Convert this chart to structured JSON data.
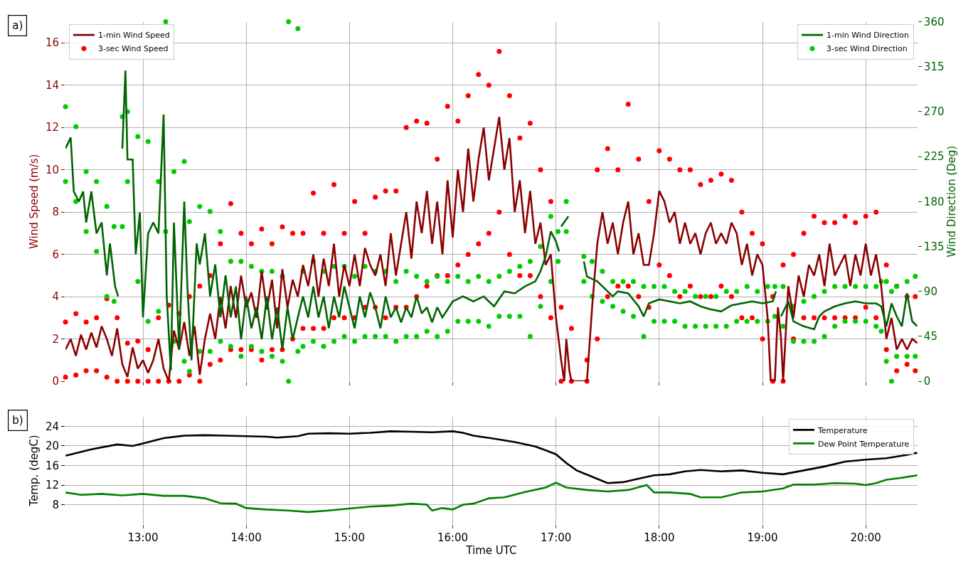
{
  "chart_data": [
    {
      "type": "line",
      "ylabel": "Wind Speed (m/s)",
      "y2label": "Wind Direction (Deg)",
      "annotations": [
        "a)"
      ],
      "xlim": [
        12.25,
        20.5
      ],
      "xticks": [
        {
          "value": 13,
          "label": null
        },
        {
          "value": 14,
          "label": null
        },
        {
          "value": 15,
          "label": null
        },
        {
          "value": 16,
          "label": null
        },
        {
          "value": 17,
          "label": null
        },
        {
          "value": 18,
          "label": null
        },
        {
          "value": 19,
          "label": null
        },
        {
          "value": 20,
          "label": null
        }
      ],
      "tick_labels": "y",
      "ylim": [
        0,
        17
      ],
      "yticks": [
        0,
        2,
        4,
        6,
        8,
        10,
        12,
        14,
        16
      ],
      "y2lim": [
        0,
        360
      ],
      "y2ticks": [
        0,
        45,
        90,
        135,
        180,
        225,
        270,
        315,
        360
      ],
      "grid": true,
      "legend": "top left",
      "series": [
        {
          "name": "1-min Wind Speed",
          "type": "line",
          "color": "#8b0000",
          "x": [
            12.25,
            12.3,
            12.35,
            12.4,
            12.45,
            12.5,
            12.55,
            12.6,
            12.65,
            12.7,
            12.75,
            12.8,
            12.85,
            12.9,
            12.95,
            13.0,
            13.05,
            13.1,
            13.15,
            13.2,
            13.25,
            13.3,
            13.35,
            13.4,
            13.45,
            13.5,
            13.55,
            13.6,
            13.65,
            13.7,
            13.75,
            13.8,
            13.85,
            13.9,
            13.95,
            14.0,
            14.05,
            14.1,
            14.15,
            14.2,
            14.25,
            14.3,
            14.35,
            14.4,
            14.45,
            14.5,
            14.55,
            14.6,
            14.65,
            14.7,
            14.75,
            14.8,
            14.85,
            14.9,
            14.95,
            15.0,
            15.05,
            15.1,
            15.15,
            15.2,
            15.25,
            15.3,
            15.35,
            15.4,
            15.45,
            15.5,
            15.55,
            15.6,
            15.65,
            15.7,
            15.75,
            15.8,
            15.85,
            15.9,
            15.95,
            16.0,
            16.05,
            16.1,
            16.15,
            16.2,
            16.25,
            16.3,
            16.35,
            16.4,
            16.45,
            16.5,
            16.55,
            16.6,
            16.65,
            16.7,
            16.75,
            16.8,
            16.85,
            16.9,
            16.95,
            17.0,
            17.05,
            17.08,
            17.1,
            17.13,
            17.15,
            17.3,
            17.35,
            17.4,
            17.45,
            17.5,
            17.55,
            17.6,
            17.65,
            17.7,
            17.75,
            17.8,
            17.85,
            17.9,
            17.95,
            18.0,
            18.05,
            18.1,
            18.15,
            18.2,
            18.25,
            18.3,
            18.35,
            18.4,
            18.45,
            18.5,
            18.55,
            18.6,
            18.65,
            18.7,
            18.75,
            18.8,
            18.85,
            18.9,
            18.95,
            19.0,
            19.05,
            19.08,
            19.12,
            19.15,
            19.18,
            19.2,
            19.25,
            19.3,
            19.35,
            19.4,
            19.45,
            19.5,
            19.55,
            19.6,
            19.65,
            19.7,
            19.75,
            19.8,
            19.85,
            19.9,
            19.95,
            20.0,
            20.05,
            20.1,
            20.15,
            20.2,
            20.25,
            20.3,
            20.35,
            20.4,
            20.45,
            20.5
          ],
          "values": [
            1.5,
            2.0,
            1.2,
            2.2,
            1.5,
            2.3,
            1.6,
            2.6,
            2.0,
            1.2,
            2.5,
            0.8,
            0.2,
            1.6,
            0.6,
            1.0,
            0.4,
            1.0,
            2.0,
            0.6,
            0.0,
            2.4,
            1.5,
            2.8,
            1.2,
            2.6,
            0.3,
            2.0,
            3.2,
            2.0,
            4.0,
            2.5,
            4.5,
            3.0,
            5.0,
            3.5,
            4.2,
            3.0,
            5.2,
            3.4,
            4.8,
            2.5,
            5.3,
            3.5,
            4.8,
            4.0,
            5.5,
            4.5,
            6.0,
            4.0,
            5.8,
            4.5,
            6.5,
            4.0,
            5.5,
            4.5,
            6.0,
            4.5,
            6.3,
            5.5,
            5.0,
            6.0,
            4.5,
            7.0,
            5.0,
            6.5,
            8.0,
            5.8,
            8.5,
            7.0,
            9.0,
            6.5,
            8.5,
            6.0,
            9.5,
            6.8,
            10.0,
            8.0,
            11.0,
            8.5,
            10.5,
            12.0,
            9.5,
            11.0,
            12.5,
            10.0,
            11.5,
            8.0,
            9.5,
            7.0,
            9.0,
            6.5,
            7.5,
            5.5,
            6.0,
            3.0,
            1.0,
            0.0,
            2.0,
            0.5,
            0.0,
            0.0,
            3.5,
            6.5,
            8.0,
            6.5,
            7.5,
            6.0,
            7.5,
            8.5,
            6.0,
            7.0,
            5.5,
            5.5,
            7.0,
            9.0,
            8.5,
            7.5,
            8.0,
            6.5,
            7.5,
            6.5,
            7.0,
            6.0,
            7.0,
            7.5,
            6.5,
            7.0,
            6.5,
            7.5,
            7.0,
            5.5,
            6.5,
            5.0,
            6.0,
            5.5,
            3.0,
            0.0,
            0.0,
            3.5,
            2.0,
            0.0,
            4.5,
            3.0,
            5.0,
            4.0,
            5.5,
            5.0,
            6.0,
            4.5,
            6.5,
            5.0,
            5.5,
            6.0,
            4.5,
            6.0,
            5.0,
            6.5,
            5.0,
            6.0,
            4.5,
            2.0,
            3.0,
            1.5,
            2.0,
            1.5,
            2.0,
            1.8
          ]
        },
        {
          "name": "3-sec Wind Speed",
          "type": "scatter",
          "marker": "circle",
          "color": "#ff0000",
          "x": [
            12.25,
            12.25,
            12.35,
            12.35,
            12.45,
            12.45,
            12.55,
            12.55,
            12.65,
            12.65,
            12.75,
            12.75,
            12.85,
            12.85,
            12.95,
            12.95,
            13.05,
            13.05,
            13.15,
            13.15,
            13.25,
            13.25,
            13.35,
            13.35,
            13.45,
            13.45,
            13.55,
            13.55,
            13.65,
            13.65,
            13.75,
            13.75,
            13.85,
            13.85,
            13.95,
            13.95,
            14.05,
            14.05,
            14.15,
            14.15,
            14.25,
            14.25,
            14.35,
            14.35,
            14.45,
            14.45,
            14.55,
            14.55,
            14.65,
            14.65,
            14.75,
            14.75,
            14.85,
            14.85,
            14.95,
            14.95,
            15.05,
            15.05,
            15.15,
            15.15,
            15.25,
            15.25,
            15.35,
            15.35,
            15.45,
            15.45,
            15.55,
            15.55,
            15.65,
            15.65,
            15.75,
            15.75,
            15.85,
            15.85,
            15.95,
            15.95,
            16.05,
            16.05,
            16.15,
            16.15,
            16.25,
            16.25,
            16.35,
            16.35,
            16.45,
            16.45,
            16.55,
            16.55,
            16.65,
            16.65,
            16.75,
            16.75,
            16.85,
            16.85,
            16.95,
            16.95,
            17.05,
            17.05,
            17.15,
            17.15,
            17.3,
            17.3,
            17.4,
            17.4,
            17.5,
            17.5,
            17.6,
            17.6,
            17.7,
            17.7,
            17.8,
            17.8,
            17.9,
            17.9,
            18.0,
            18.0,
            18.1,
            18.1,
            18.2,
            18.2,
            18.3,
            18.3,
            18.4,
            18.4,
            18.5,
            18.5,
            18.6,
            18.6,
            18.7,
            18.7,
            18.8,
            18.8,
            18.9,
            18.9,
            19.0,
            19.0,
            19.1,
            19.1,
            19.2,
            19.2,
            19.3,
            19.3,
            19.4,
            19.4,
            19.5,
            19.5,
            19.6,
            19.6,
            19.7,
            19.7,
            19.8,
            19.8,
            19.9,
            19.9,
            20.0,
            20.0,
            20.1,
            20.1,
            20.2,
            20.2,
            20.3,
            20.3,
            20.4,
            20.4,
            20.48,
            20.48
          ],
          "values": [
            2.8,
            0.2,
            3.2,
            0.3,
            2.8,
            0.5,
            3.0,
            0.5,
            3.9,
            0.2,
            3.0,
            0,
            1.8,
            0,
            1.9,
            0,
            1.5,
            0,
            3.0,
            0,
            3.6,
            0,
            3.2,
            0,
            4.0,
            0.3,
            4.5,
            0,
            5.0,
            0.8,
            6.5,
            1.0,
            8.4,
            1.5,
            7.0,
            1.5,
            6.5,
            1.5,
            7.2,
            1.0,
            6.5,
            1.5,
            7.3,
            1.5,
            7.0,
            2.0,
            7.0,
            2.5,
            8.9,
            2.5,
            7.0,
            2.5,
            9.3,
            3.0,
            7.0,
            3.0,
            8.5,
            3.0,
            7.0,
            3.5,
            8.7,
            3.5,
            9.0,
            3.0,
            9.0,
            3.5,
            12.0,
            3.5,
            12.3,
            4.0,
            12.2,
            4.5,
            10.5,
            5.0,
            13.0,
            5.0,
            12.3,
            5.5,
            13.5,
            6.0,
            14.5,
            6.5,
            14.0,
            7.0,
            15.6,
            8.0,
            13.5,
            6.0,
            11.5,
            5.0,
            12.2,
            5.0,
            10.0,
            4.0,
            8.5,
            3.0,
            3.5,
            0,
            2.5,
            0,
            1.0,
            0,
            10.0,
            2.0,
            11.0,
            4.0,
            10.0,
            4.5,
            13.1,
            4.5,
            10.5,
            4.0,
            8.5,
            3.5,
            10.9,
            5.5,
            10.5,
            5.0,
            10.0,
            4.0,
            10.0,
            4.5,
            9.3,
            4.0,
            9.5,
            4.0,
            9.8,
            4.5,
            9.5,
            4.0,
            8.0,
            3.0,
            7.0,
            3.0,
            6.5,
            2.0,
            4.0,
            0,
            5.5,
            0,
            6.0,
            2.0,
            7.0,
            3.0,
            7.8,
            3.0,
            7.5,
            3.0,
            7.5,
            3.0,
            7.8,
            3.0,
            7.5,
            3.0,
            7.8,
            3.5,
            8.0,
            3.0,
            5.5,
            1.5,
            4.5,
            0.5,
            4.0,
            0.8,
            4.0,
            0.5
          ]
        },
        {
          "name": "1-min Wind Direction",
          "type": "line",
          "axis": "y2",
          "color": "#006400",
          "x": [
            12.25,
            12.3,
            12.33,
            12.38,
            12.42,
            12.45,
            12.5,
            12.55,
            12.6,
            12.65,
            12.68,
            12.73,
            12.76,
            12.78,
            12.8,
            12.83,
            12.85,
            12.9,
            12.93,
            12.97,
            13.0,
            13.05,
            13.1,
            13.15,
            13.2,
            13.23,
            13.27,
            13.3,
            13.35,
            13.4,
            13.43,
            13.47,
            13.52,
            13.55,
            13.6,
            13.65,
            13.7,
            13.75,
            13.8,
            13.85,
            13.9,
            13.95,
            14.0,
            14.05,
            14.1,
            14.15,
            14.2,
            14.25,
            14.3,
            14.35,
            14.4,
            14.45,
            14.5,
            14.55,
            14.6,
            14.65,
            14.7,
            14.75,
            14.8,
            14.85,
            14.9,
            14.95,
            15.0,
            15.05,
            15.1,
            15.15,
            15.2,
            15.25,
            15.3,
            15.35,
            15.4,
            15.45,
            15.5,
            15.55,
            15.6,
            15.65,
            15.7,
            15.75,
            15.8,
            15.85,
            15.9,
            16.0,
            16.1,
            16.2,
            16.3,
            16.4,
            16.5,
            16.6,
            16.7,
            16.8,
            16.85,
            16.9,
            16.95,
            17.0,
            17.03,
            17.04,
            17.05,
            17.12,
            17.2,
            17.27,
            17.3,
            17.4,
            17.5,
            17.55,
            17.6,
            17.7,
            17.8,
            17.85,
            17.9,
            18.0,
            18.1,
            18.2,
            18.3,
            18.4,
            18.5,
            18.6,
            18.7,
            18.8,
            18.9,
            19.0,
            19.1,
            19.13,
            19.15,
            19.18,
            19.25,
            19.3,
            19.4,
            19.5,
            19.55,
            19.6,
            19.7,
            19.8,
            19.9,
            20.0,
            20.1,
            20.15,
            20.2,
            20.25,
            20.3,
            20.35,
            20.4,
            20.45,
            20.5
          ],
          "values": [
            233,
            244,
            190,
            180,
            190,
            159,
            190,
            148,
            159,
            106,
            138,
            95,
            85,
            null,
            233,
            311,
            222,
            222,
            127,
            169,
            64,
            148,
            159,
            148,
            267,
            85,
            11,
            159,
            32,
            180,
            95,
            21,
            138,
            117,
            148,
            85,
            117,
            64,
            106,
            64,
            95,
            42,
            85,
            53,
            74,
            42,
            85,
            42,
            74,
            32,
            74,
            42,
            64,
            85,
            64,
            95,
            64,
            85,
            53,
            85,
            64,
            95,
            74,
            53,
            85,
            64,
            89,
            74,
            53,
            85,
            64,
            74,
            59,
            74,
            64,
            85,
            68,
            74,
            59,
            74,
            64,
            80,
            85,
            80,
            85,
            75,
            90,
            88,
            95,
            100,
            110,
            125,
            150,
            140,
            130,
            null,
            155,
            165,
            null,
            120,
            105,
            100,
            90,
            85,
            90,
            88,
            75,
            65,
            78,
            82,
            80,
            78,
            80,
            75,
            72,
            70,
            76,
            78,
            80,
            78,
            80,
            90,
            null,
            65,
            80,
            60,
            55,
            52,
            65,
            70,
            75,
            78,
            80,
            78,
            78,
            75,
            55,
            78,
            65,
            55,
            88,
            60,
            55
          ]
        },
        {
          "name": "3-sec Wind Direction",
          "type": "scatter",
          "marker": "circle",
          "axis": "y2",
          "color": "#00cc00",
          "x": [
            12.25,
            12.25,
            12.35,
            12.35,
            12.45,
            12.45,
            12.55,
            12.55,
            12.65,
            12.65,
            12.72,
            12.72,
            12.8,
            12.8,
            12.85,
            12.85,
            12.95,
            12.95,
            13.05,
            13.05,
            13.15,
            13.15,
            13.22,
            13.22,
            13.3,
            13.3,
            13.4,
            13.4,
            13.45,
            13.45,
            13.55,
            13.55,
            13.65,
            13.65,
            13.75,
            13.75,
            13.85,
            13.85,
            13.95,
            13.95,
            14.05,
            14.05,
            14.15,
            14.15,
            14.25,
            14.25,
            14.35,
            14.35,
            14.41,
            14.41,
            14.5,
            14.5,
            14.55,
            14.55,
            14.65,
            14.65,
            14.75,
            14.75,
            14.85,
            14.85,
            14.95,
            14.95,
            15.05,
            15.05,
            15.15,
            15.15,
            15.25,
            15.25,
            15.35,
            15.35,
            15.45,
            15.45,
            15.55,
            15.55,
            15.65,
            15.65,
            15.75,
            15.75,
            15.85,
            15.85,
            15.95,
            15.95,
            16.05,
            16.05,
            16.15,
            16.15,
            16.25,
            16.25,
            16.35,
            16.35,
            16.45,
            16.45,
            16.55,
            16.55,
            16.65,
            16.65,
            16.75,
            16.75,
            16.85,
            16.85,
            16.95,
            16.95,
            17.02,
            17.02,
            17.1,
            17.1,
            17.27,
            17.27,
            17.35,
            17.35,
            17.45,
            17.45,
            17.55,
            17.55,
            17.65,
            17.65,
            17.75,
            17.75,
            17.85,
            17.85,
            17.95,
            17.95,
            18.05,
            18.05,
            18.15,
            18.15,
            18.25,
            18.25,
            18.35,
            18.35,
            18.45,
            18.45,
            18.55,
            18.55,
            18.65,
            18.65,
            18.75,
            18.75,
            18.85,
            18.85,
            18.95,
            18.95,
            19.05,
            19.05,
            19.12,
            19.12,
            19.2,
            19.2,
            19.3,
            19.3,
            19.4,
            19.4,
            19.5,
            19.5,
            19.6,
            19.6,
            19.7,
            19.7,
            19.8,
            19.8,
            19.9,
            19.9,
            20.0,
            20.0,
            20.1,
            20.1,
            20.15,
            20.15,
            20.2,
            20.2,
            20.25,
            20.25,
            20.3,
            20.3,
            20.4,
            20.4,
            20.48,
            20.48
          ],
          "values": [
            275,
            200,
            255,
            180,
            210,
            150,
            200,
            130,
            175,
            85,
            155,
            80,
            265,
            155,
            270,
            200,
            245,
            100,
            240,
            60,
            200,
            70,
            360,
            150,
            210,
            40,
            220,
            20,
            160,
            10,
            175,
            30,
            170,
            30,
            150,
            40,
            120,
            35,
            120,
            25,
            115,
            35,
            110,
            30,
            110,
            25,
            105,
            20,
            360,
            0,
            353,
            30,
            110,
            35,
            120,
            40,
            110,
            35,
            115,
            40,
            115,
            45,
            105,
            40,
            115,
            45,
            110,
            45,
            110,
            45,
            100,
            40,
            110,
            45,
            105,
            45,
            100,
            50,
            105,
            45,
            100,
            50,
            105,
            60,
            100,
            60,
            105,
            60,
            100,
            55,
            105,
            65,
            110,
            65,
            115,
            65,
            120,
            45,
            135,
            75,
            165,
            100,
            150,
            120,
            180,
            150,
            125,
            100,
            120,
            85,
            110,
            80,
            100,
            75,
            100,
            70,
            100,
            65,
            95,
            45,
            95,
            60,
            95,
            60,
            90,
            60,
            90,
            55,
            85,
            55,
            85,
            55,
            85,
            55,
            90,
            55,
            90,
            60,
            95,
            60,
            90,
            60,
            95,
            60,
            95,
            65,
            95,
            55,
            75,
            40,
            80,
            40,
            85,
            40,
            90,
            45,
            95,
            55,
            95,
            60,
            95,
            60,
            95,
            60,
            95,
            55,
            100,
            50,
            100,
            20,
            90,
            0,
            95,
            25,
            100,
            25,
            105,
            25
          ]
        }
      ]
    },
    {
      "type": "line",
      "xlabel": "Time UTC",
      "ylabel": "Temp. (degC)",
      "annotations": [
        "b)"
      ],
      "xlim": [
        12.25,
        20.5
      ],
      "xticks": [
        {
          "value": 13,
          "label": "13:00"
        },
        {
          "value": 14,
          "label": "14:00"
        },
        {
          "value": 15,
          "label": "15:00"
        },
        {
          "value": 16,
          "label": "16:00"
        },
        {
          "value": 17,
          "label": "17:00"
        },
        {
          "value": 18,
          "label": "18:00"
        },
        {
          "value": 19,
          "label": "19:00"
        },
        {
          "value": 20,
          "label": "20:00"
        }
      ],
      "ylim": [
        4,
        26
      ],
      "yticks": [
        8,
        12,
        16,
        20,
        24
      ],
      "grid": true,
      "legend": "top right",
      "series": [
        {
          "name": "Temperature",
          "color": "#000000",
          "x": [
            12.25,
            12.5,
            12.75,
            12.9,
            13.0,
            13.2,
            13.4,
            13.6,
            13.8,
            14.0,
            14.2,
            14.3,
            14.5,
            14.6,
            14.8,
            15.0,
            15.2,
            15.4,
            15.6,
            15.8,
            16.0,
            16.1,
            16.2,
            16.4,
            16.6,
            16.8,
            17.0,
            17.1,
            17.2,
            17.35,
            17.5,
            17.65,
            17.8,
            17.95,
            18.1,
            18.25,
            18.4,
            18.6,
            18.8,
            19.0,
            19.2,
            19.4,
            19.6,
            19.8,
            20.0,
            20.2,
            20.35,
            20.5
          ],
          "values": [
            18.0,
            19.3,
            20.3,
            20.0,
            20.5,
            21.6,
            22.1,
            22.2,
            22.1,
            22.0,
            21.9,
            21.7,
            22.0,
            22.5,
            22.6,
            22.5,
            22.7,
            23.0,
            22.9,
            22.8,
            23.0,
            22.7,
            22.1,
            21.5,
            20.8,
            19.9,
            18.3,
            16.5,
            15.0,
            13.7,
            12.4,
            12.6,
            13.3,
            14.0,
            14.2,
            14.8,
            15.1,
            14.8,
            15.0,
            14.5,
            14.2,
            15.0,
            15.8,
            16.8,
            17.2,
            17.5,
            18.0,
            18.6
          ]
        },
        {
          "name": "Dew Point Temperature",
          "color": "#008000",
          "x": [
            12.25,
            12.4,
            12.6,
            12.8,
            13.0,
            13.2,
            13.4,
            13.6,
            13.75,
            13.9,
            14.0,
            14.2,
            14.4,
            14.6,
            14.8,
            15.0,
            15.2,
            15.4,
            15.6,
            15.75,
            15.8,
            15.9,
            16.0,
            16.1,
            16.2,
            16.35,
            16.5,
            16.7,
            16.9,
            17.0,
            17.1,
            17.3,
            17.5,
            17.7,
            17.88,
            17.95,
            18.1,
            18.3,
            18.4,
            18.6,
            18.8,
            19.0,
            19.2,
            19.3,
            19.5,
            19.7,
            19.9,
            20.0,
            20.1,
            20.2,
            20.35,
            20.5
          ],
          "values": [
            10.5,
            10.0,
            10.2,
            9.9,
            10.2,
            9.8,
            9.8,
            9.3,
            8.3,
            8.2,
            7.3,
            7.0,
            6.8,
            6.5,
            6.8,
            7.2,
            7.6,
            7.8,
            8.2,
            8.0,
            6.8,
            7.3,
            7.0,
            8.0,
            8.2,
            9.3,
            9.5,
            10.6,
            11.5,
            12.5,
            11.5,
            11.0,
            10.7,
            11.0,
            12.0,
            10.5,
            10.5,
            10.2,
            9.5,
            9.5,
            10.5,
            10.7,
            11.3,
            12.1,
            12.1,
            12.4,
            12.3,
            12.0,
            12.4,
            13.1,
            13.5,
            14.0
          ]
        }
      ]
    }
  ]
}
